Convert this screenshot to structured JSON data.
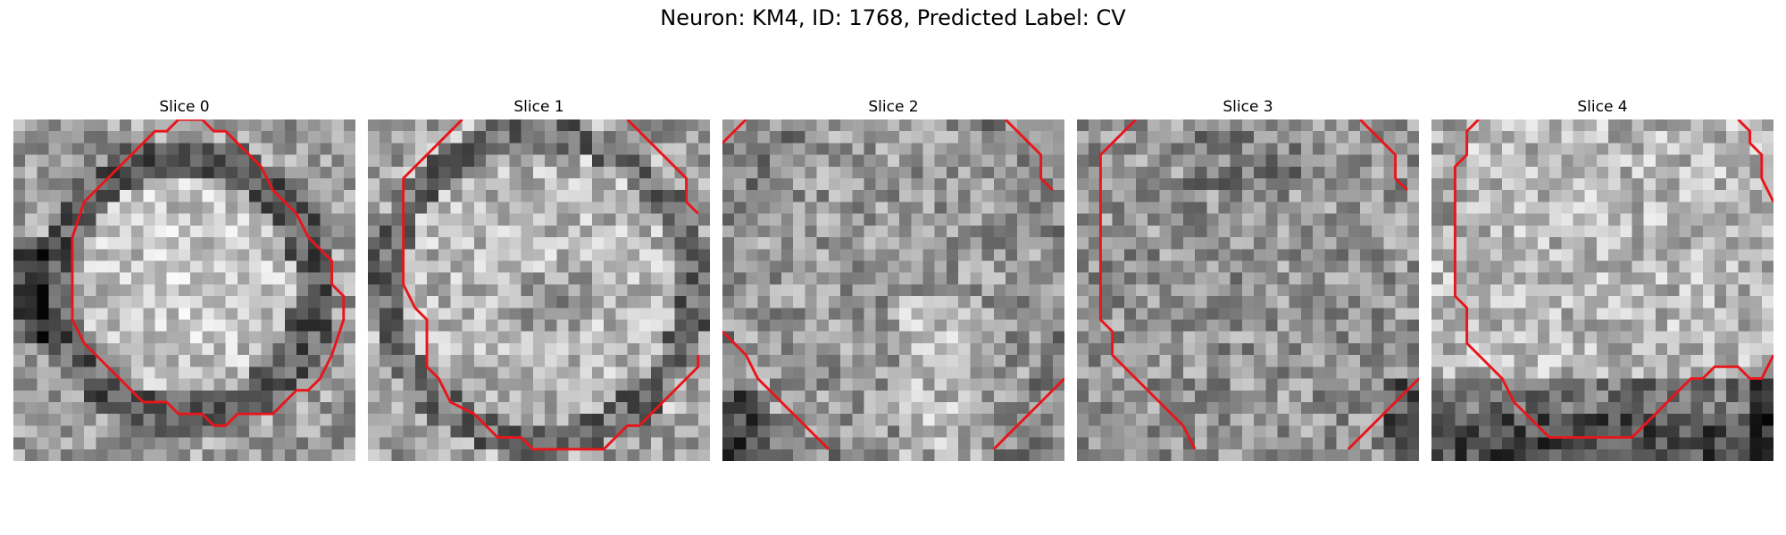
{
  "figure": {
    "title": "Neuron: KM4, ID: 1768, Predicted Label: CV"
  },
  "colors": {
    "contour": "#e8151b"
  },
  "panels": [
    {
      "title": "Slice 0"
    },
    {
      "title": "Slice 1"
    },
    {
      "title": "Slice 2"
    },
    {
      "title": "Slice 3"
    },
    {
      "title": "Slice 4"
    }
  ]
}
